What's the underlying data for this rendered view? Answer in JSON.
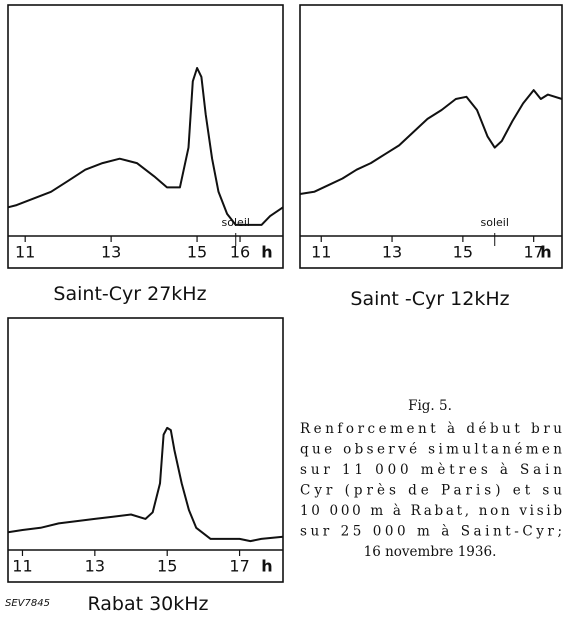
{
  "chart_data": [
    {
      "type": "line",
      "title": "Saint-Cyr 27kHz",
      "x_label": "h",
      "xlim": [
        10.6,
        17
      ],
      "xticks": [
        11,
        13,
        15,
        16
      ],
      "ylim": [
        0,
        100
      ],
      "x": [
        10.6,
        10.8,
        11.2,
        11.6,
        12.0,
        12.4,
        12.8,
        13.2,
        13.6,
        14.0,
        14.3,
        14.6,
        14.8,
        14.9,
        15.0,
        15.1,
        15.2,
        15.35,
        15.5,
        15.7,
        15.9,
        16.2,
        16.5,
        16.7,
        17.0
      ],
      "series": [
        {
          "color": "#111111",
          "values": [
            13,
            14,
            17,
            20,
            25,
            30,
            33,
            35,
            33,
            27,
            22,
            22,
            40,
            70,
            76,
            72,
            55,
            35,
            20,
            10,
            5,
            5,
            5,
            9,
            13
          ]
        }
      ],
      "annotations": [
        {
          "text": "soleil",
          "x": 15.9
        }
      ]
    },
    {
      "type": "line",
      "title": "Saint -Cyr 12kHz",
      "x_label": "h",
      "xlim": [
        10.4,
        17.8
      ],
      "xticks": [
        11,
        13,
        15,
        17
      ],
      "ylim": [
        0,
        100
      ],
      "x": [
        10.4,
        10.8,
        11.2,
        11.6,
        12.0,
        12.4,
        12.8,
        13.2,
        13.6,
        14.0,
        14.4,
        14.8,
        15.1,
        15.4,
        15.7,
        15.9,
        16.1,
        16.4,
        16.7,
        17.0,
        17.2,
        17.4,
        17.8
      ],
      "series": [
        {
          "color": "#111111",
          "values": [
            19,
            20,
            23,
            26,
            30,
            33,
            37,
            41,
            47,
            53,
            57,
            62,
            63,
            57,
            45,
            40,
            43,
            52,
            60,
            66,
            62,
            64,
            62
          ]
        }
      ],
      "annotations": [
        {
          "text": "soleil",
          "x": 15.9
        }
      ]
    },
    {
      "type": "line",
      "title": "Rabat 30kHz",
      "x_label": "h",
      "xlim": [
        10.6,
        18.2
      ],
      "xticks": [
        11,
        13,
        15,
        17
      ],
      "ylim": [
        0,
        100
      ],
      "x": [
        10.6,
        11.0,
        11.5,
        12.0,
        12.5,
        13.0,
        13.5,
        14.0,
        14.4,
        14.6,
        14.8,
        14.9,
        15.0,
        15.1,
        15.2,
        15.4,
        15.6,
        15.8,
        16.2,
        16.6,
        17.0,
        17.3,
        17.6,
        18.2
      ],
      "series": [
        {
          "color": "#111111",
          "values": [
            8,
            9,
            10,
            12,
            13,
            14,
            15,
            16,
            14,
            17,
            30,
            52,
            55,
            54,
            45,
            30,
            18,
            10,
            5,
            5,
            5,
            4,
            5,
            6
          ]
        }
      ]
    }
  ],
  "figure_id": "SEV7845",
  "caption": {
    "title": "Fig. 5.",
    "lines": [
      "Renforcement à début bru",
      "que observé simultanémen",
      "sur 11 000 mètres à Sain",
      "Cyr (près de Paris) et su",
      "10 000 m à Rabat, non visib",
      "sur 25 000 m à Saint-Cyr;",
      "16 novembre 1936."
    ]
  }
}
